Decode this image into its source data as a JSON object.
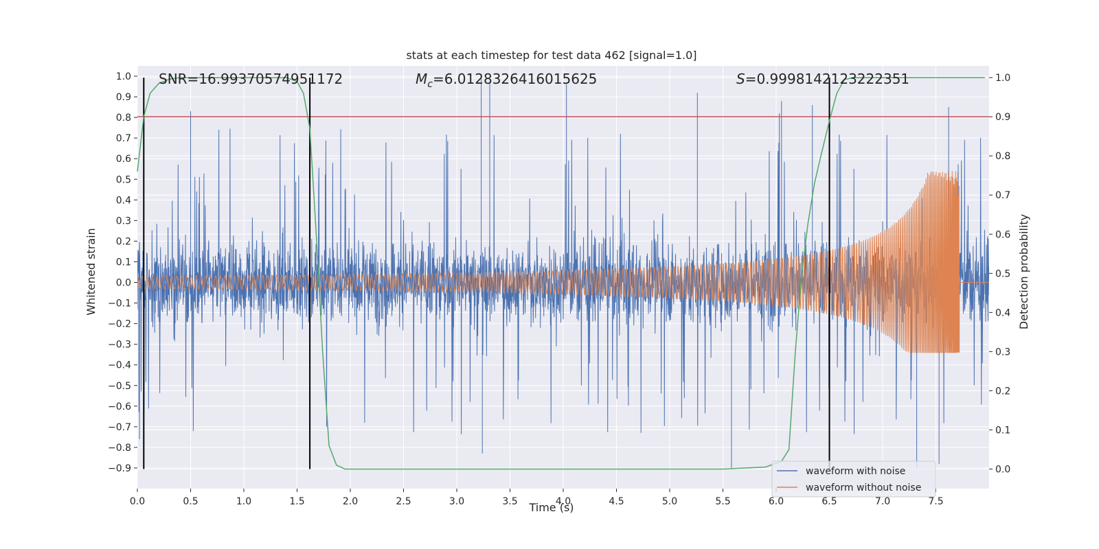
{
  "chart_data": {
    "type": "line",
    "title": "stats at each timestep for test data 462 [signal=1.0]",
    "xlabel": "Time (s)",
    "ylabel": "Whitened strain",
    "y2label": "Detection probability",
    "xlim": [
      0,
      8
    ],
    "ylim": [
      -1.0,
      1.05
    ],
    "y2lim": [
      -0.05,
      1.03
    ],
    "x_ticks": [
      0.0,
      0.5,
      1.0,
      1.5,
      2.0,
      2.5,
      3.0,
      3.5,
      4.0,
      4.5,
      5.0,
      5.5,
      6.0,
      6.5,
      7.0,
      7.5
    ],
    "x_tick_labels": [
      "0.0",
      "0.5",
      "1.0",
      "1.5",
      "2.0",
      "2.5",
      "3.0",
      "3.5",
      "4.0",
      "4.5",
      "5.0",
      "5.5",
      "6.0",
      "6.5",
      "7.0",
      "7.5"
    ],
    "y_ticks": [
      -0.9,
      -0.8,
      -0.7,
      -0.6,
      -0.5,
      -0.4,
      -0.3,
      -0.2,
      -0.1,
      0.0,
      0.1,
      0.2,
      0.3,
      0.4,
      0.5,
      0.6,
      0.7,
      0.8,
      0.9,
      1.0
    ],
    "y_tick_labels": [
      "−0.9",
      "−0.8",
      "−0.7",
      "−0.6",
      "−0.5",
      "−0.4",
      "−0.3",
      "−0.2",
      "−0.1",
      "0.0",
      "0.1",
      "0.2",
      "0.3",
      "0.4",
      "0.5",
      "0.6",
      "0.7",
      "0.8",
      "0.9",
      "1.0"
    ],
    "y2_ticks": [
      0.0,
      0.1,
      0.2,
      0.3,
      0.4,
      0.5,
      0.6,
      0.7,
      0.8,
      0.9,
      1.0
    ],
    "y2_tick_labels": [
      "0.0",
      "0.1",
      "0.2",
      "0.3",
      "0.4",
      "0.5",
      "0.6",
      "0.7",
      "0.8",
      "0.9",
      "1.0"
    ],
    "grid": true,
    "legend_position": "lower-right",
    "annotations": {
      "snr": "SNR=16.99370574951172",
      "mc_symbol": "M",
      "mc_sub": "c",
      "mc_value": "=6.0128326416015625",
      "s_symbol": "S",
      "s_value": "=0.9998142123222351"
    },
    "threshold_y2": 0.9,
    "vertical_markers_x": [
      0.06,
      1.62,
      6.5
    ],
    "series": [
      {
        "name": "waveform with noise",
        "color": "#4c72b0",
        "noise_band_y": [
          -0.3,
          0.3
        ],
        "notable_peaks": [
          [
            0.5,
            0.83
          ],
          [
            3.23,
            1.0
          ],
          [
            3.31,
            0.97
          ],
          [
            4.03,
            0.96
          ],
          [
            5.26,
            0.92
          ],
          [
            6.03,
            0.82
          ],
          [
            6.05,
            0.88
          ],
          [
            6.34,
            0.86
          ],
          [
            7.62,
            0.85
          ],
          [
            3.24,
            -0.83
          ],
          [
            5.58,
            -0.9
          ],
          [
            7.32,
            -0.9
          ],
          [
            7.53,
            -0.88
          ],
          [
            0.02,
            -0.76
          ]
        ]
      },
      {
        "name": "waveform without noise",
        "color": "#dd8452",
        "chirp": {
          "t_start": 0.0,
          "t_merger": 7.72,
          "amp_start": 0.03,
          "amp_peak": 0.54,
          "amp_min": -0.34,
          "n_cycles": 265
        }
      },
      {
        "name": "detection probability",
        "axis": "right",
        "color": "#55a868",
        "x": [
          0.0,
          0.06,
          0.12,
          0.2,
          0.3,
          0.4,
          0.6,
          0.8,
          1.0,
          1.2,
          1.4,
          1.5,
          1.56,
          1.62,
          1.68,
          1.74,
          1.8,
          1.87,
          1.95,
          2.5,
          3.5,
          4.5,
          5.5,
          5.9,
          6.05,
          6.12,
          6.18,
          6.24,
          6.3,
          6.36,
          6.42,
          6.5,
          6.57,
          6.64,
          6.72,
          6.8,
          7.0,
          7.5,
          7.96
        ],
        "y": [
          0.76,
          0.9,
          0.96,
          0.985,
          0.996,
          1.0,
          1.0,
          1.0,
          1.0,
          1.0,
          1.0,
          0.99,
          0.96,
          0.87,
          0.6,
          0.3,
          0.06,
          0.01,
          0.0,
          0.0,
          0.0,
          0.0,
          0.0,
          0.005,
          0.02,
          0.05,
          0.3,
          0.5,
          0.63,
          0.73,
          0.8,
          0.89,
          0.96,
          0.995,
          1.0,
          1.0,
          1.0,
          1.0,
          1.0
        ]
      }
    ],
    "colors": {
      "plot_bg": "#eaeaf2",
      "grid": "#ffffff",
      "threshold": "#c44e52",
      "markers": "#000000"
    }
  }
}
